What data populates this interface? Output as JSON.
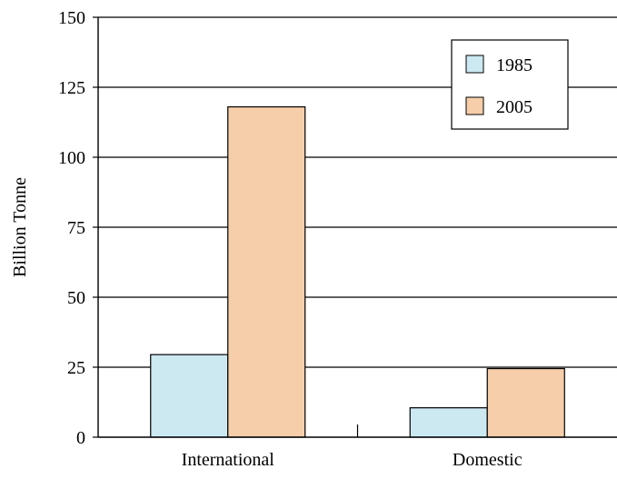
{
  "chart_data": {
    "type": "bar",
    "title": "",
    "xlabel": "",
    "ylabel": "Billion Tonne",
    "categories": [
      "International",
      "Domestic"
    ],
    "series": [
      {
        "name": "1985",
        "values": [
          29.5,
          10.5
        ]
      },
      {
        "name": "2005",
        "values": [
          118,
          24.5
        ]
      }
    ],
    "ylim": [
      0,
      150
    ],
    "yticks": [
      "0",
      "25",
      "50",
      "75",
      "100",
      "125",
      "150"
    ],
    "grid": true,
    "legend_position": "top-right",
    "colors": {
      "1985": "#cce9f2",
      "2005": "#f7ceaa"
    }
  }
}
